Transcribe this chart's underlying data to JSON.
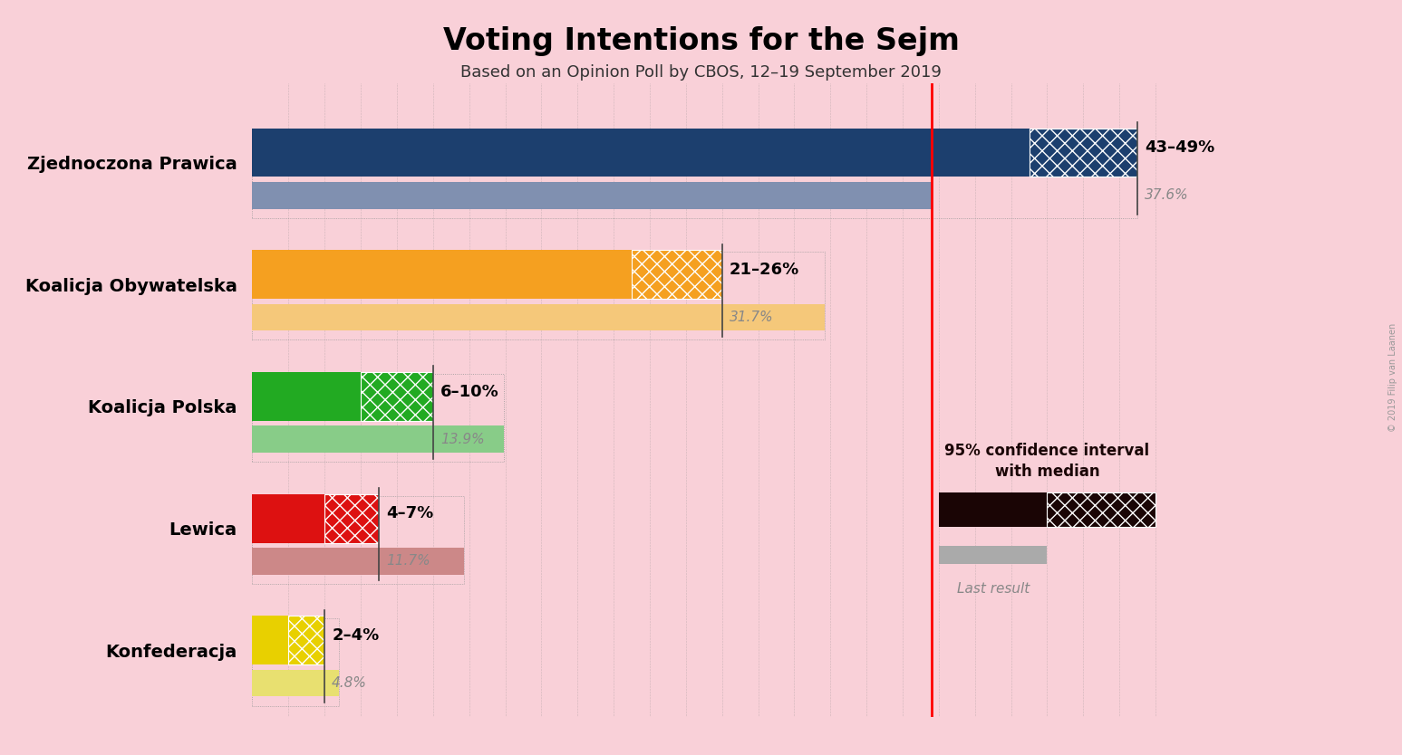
{
  "title": "Voting Intentions for the Sejm",
  "subtitle": "Based on an Opinion Poll by CBOS, 12–19 September 2019",
  "copyright": "© 2019 Filip van Laanen",
  "background_color": "#f9d0d8",
  "parties": [
    {
      "name": "Zjednoczona Prawica",
      "ci_low": 43,
      "ci_high": 49,
      "last_result": 37.6,
      "color": "#1c3f6e",
      "color_light": "#8090b0",
      "label": "43–49%",
      "label_last": "37.6%"
    },
    {
      "name": "Koalicja Obywatelska",
      "ci_low": 21,
      "ci_high": 26,
      "last_result": 31.7,
      "color": "#f5a020",
      "color_light": "#f5c87a",
      "label": "21–26%",
      "label_last": "31.7%"
    },
    {
      "name": "Koalicja Polska",
      "ci_low": 6,
      "ci_high": 10,
      "last_result": 13.9,
      "color": "#22aa22",
      "color_light": "#88cc88",
      "label": "6–10%",
      "label_last": "13.9%"
    },
    {
      "name": "Lewica",
      "ci_low": 4,
      "ci_high": 7,
      "last_result": 11.7,
      "color": "#dd1111",
      "color_light": "#cc8888",
      "label": "4–7%",
      "label_last": "11.7%"
    },
    {
      "name": "Konfederacja",
      "ci_low": 2,
      "ci_high": 4,
      "last_result": 4.8,
      "color": "#e8d000",
      "color_light": "#e8e070",
      "label": "2–4%",
      "label_last": "4.8%"
    }
  ],
  "red_line_x": 37.6,
  "xlim_max": 52,
  "legend_ci_color": "#1a0505",
  "legend_gray": "#aaaaaa"
}
